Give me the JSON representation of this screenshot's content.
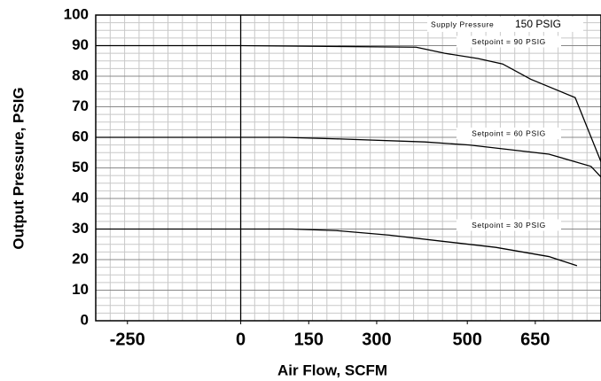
{
  "chart_data": {
    "type": "line",
    "x_label": "Air Flow, SCFM",
    "y_label": "Output Pressure, PSIG",
    "annotations": [
      "Supply Pressure",
      "150 PSIG"
    ],
    "series": [
      {
        "name": "Setpoint = 90 PSIG",
        "color": "#000000",
        "x": [
          -320,
          0,
          387,
          450,
          523,
          578,
          640,
          738,
          795
        ],
        "values": [
          90,
          90,
          89.5,
          87.5,
          85.8,
          84,
          79,
          73,
          52
        ]
      },
      {
        "name": "Setpoint = 60 PSIG",
        "color": "#000000",
        "x": [
          -320,
          94,
          211,
          406,
          504,
          621,
          680,
          773,
          795
        ],
        "values": [
          60,
          60,
          59.5,
          58.5,
          57.5,
          55.5,
          54.5,
          50.5,
          47
        ]
      },
      {
        "name": "Setpoint = 30 PSIG",
        "color": "#000000",
        "x": [
          -320,
          113,
          211,
          328,
          445,
          563,
          680,
          742
        ],
        "values": [
          30,
          30,
          29.5,
          28,
          26,
          24,
          21,
          18
        ]
      }
    ],
    "xlim": [
      -320,
      795
    ],
    "xticks": [
      -250,
      0,
      150,
      300,
      500,
      650
    ],
    "ylim": [
      0,
      100
    ],
    "yticks": [
      0,
      10,
      20,
      30,
      40,
      50,
      60,
      70,
      80,
      90,
      100
    ],
    "grid": true
  }
}
